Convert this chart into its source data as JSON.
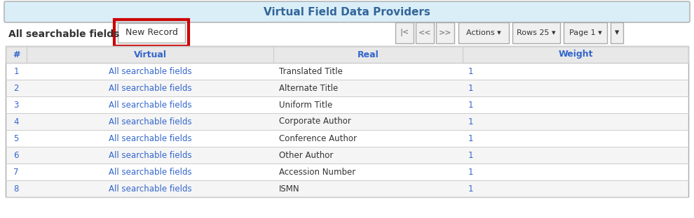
{
  "title": "Virtual Field Data Providers",
  "title_bg": "#daeef8",
  "title_color": "#336699",
  "toolbar_label": "All searchable fields",
  "new_record_btn": "New Record",
  "new_record_border": "#cc0000",
  "nav_buttons": [
    "⧏⧏",
    "◄◄",
    "►►"
  ],
  "nav_labels": [
    "|<",
    "<<",
    ">>"
  ],
  "actions_btn": "Actions ▾",
  "rows_btn": "Rows 25 ▾",
  "page_btn": "Page 1 ▾",
  "col_headers": [
    "#",
    "Virtual",
    "Real",
    "Weight"
  ],
  "col_header_color": "#3366cc",
  "col_divider_color": "#cccccc",
  "table_header_bg": "#e8e8e8",
  "row_bg_even": "#f5f5f5",
  "row_bg_odd": "#ffffff",
  "row_border": "#cccccc",
  "rows": [
    [
      "1",
      "All searchable fields",
      "Translated Title",
      "1"
    ],
    [
      "2",
      "All searchable fields",
      "Alternate Title",
      "1"
    ],
    [
      "3",
      "All searchable fields",
      "Uniform Title",
      "1"
    ],
    [
      "4",
      "All searchable fields",
      "Corporate Author",
      "1"
    ],
    [
      "5",
      "All searchable fields",
      "Conference Author",
      "1"
    ],
    [
      "6",
      "All searchable fields",
      "Other Author",
      "1"
    ],
    [
      "7",
      "All searchable fields",
      "Accession Number",
      "1"
    ],
    [
      "8",
      "All searchable fields",
      "ISMN",
      "1"
    ]
  ],
  "link_color": "#3366cc",
  "text_color": "#333333",
  "border_color": "#aaaaaa",
  "outer_border": "#aaaaaa",
  "figsize": [
    9.9,
    3.12
  ],
  "dpi": 100
}
